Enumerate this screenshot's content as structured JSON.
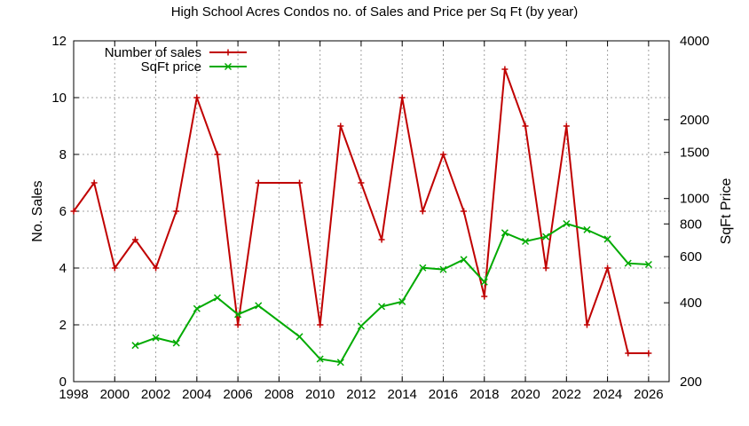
{
  "chart_data": {
    "type": "line",
    "title": "High School Acres Condos no. of Sales and Price per Sq Ft (by year)",
    "ylabel": "No. Sales",
    "y2label": "SqFt Price",
    "xlim": [
      1998,
      2027
    ],
    "ylim": [
      0,
      12
    ],
    "y2lim": [
      200,
      4000
    ],
    "y2scale": "log",
    "grid": true,
    "legend_position": "top-left",
    "xticks": [
      "1998",
      "2000",
      "2002",
      "2004",
      "2006",
      "2008",
      "2010",
      "2012",
      "2014",
      "2016",
      "2018",
      "2020",
      "2022",
      "2024",
      "2026"
    ],
    "yticks": [
      "0",
      "2",
      "4",
      "6",
      "8",
      "10",
      "12"
    ],
    "y2ticks": [
      "200",
      "400",
      "600",
      "800",
      "1000",
      "1500",
      "2000",
      "4000"
    ],
    "series": [
      {
        "name": "Number of sales",
        "axis": "left",
        "color": "#c00000",
        "marker": "plus",
        "x": [
          1998,
          1999,
          2000,
          2001,
          2002,
          2003,
          2004,
          2005,
          2006,
          2007,
          2009,
          2010,
          2011,
          2012,
          2013,
          2014,
          2015,
          2016,
          2017,
          2018,
          2019,
          2020,
          2021,
          2022,
          2023,
          2024,
          2025,
          2026
        ],
        "y": [
          6,
          7,
          4,
          5,
          4,
          6,
          10,
          8,
          2,
          7,
          7,
          2,
          9,
          7,
          5,
          10,
          6,
          8,
          6,
          3,
          11,
          9,
          4,
          9,
          2,
          4,
          1,
          1
        ]
      },
      {
        "name": "SqFt price",
        "axis": "right",
        "color": "#00aa00",
        "marker": "x",
        "x": [
          2001,
          2002,
          2003,
          2004,
          2005,
          2006,
          2007,
          2009,
          2010,
          2011,
          2012,
          2013,
          2014,
          2015,
          2016,
          2017,
          2018,
          2019,
          2020,
          2021,
          2022,
          2023,
          2024,
          2025,
          2026
        ],
        "y": [
          275,
          294,
          281,
          380,
          418,
          361,
          390,
          297,
          244,
          237,
          326,
          387,
          404,
          544,
          536,
          585,
          480,
          740,
          686,
          715,
          802,
          760,
          700,
          566,
          560
        ]
      }
    ]
  }
}
